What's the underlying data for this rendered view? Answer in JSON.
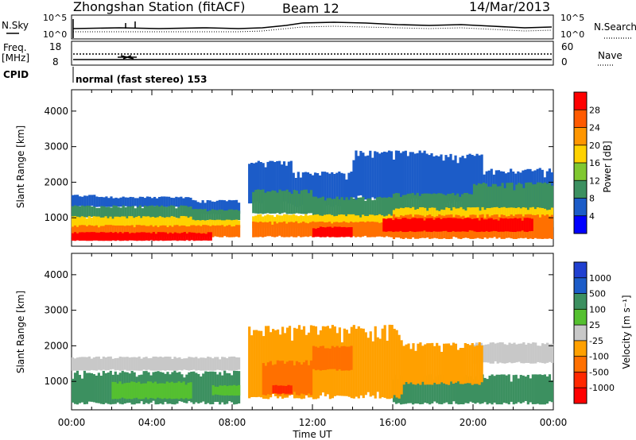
{
  "header": {
    "station": "Zhongshan Station (fitACF)",
    "beam": "Beam 12",
    "date": "14/Mar/2013"
  },
  "top_panel": {
    "left_label": "N.Sky",
    "left_ticks": [
      "10^5",
      "10^0"
    ],
    "right_label": "N.Search",
    "right_ticks": [
      "10^5",
      "10^0"
    ]
  },
  "freq_panel": {
    "left_label_1": "Freq.",
    "left_label_2": "[MHz]",
    "left_ticks": [
      "18",
      "8"
    ],
    "right_label": "Nave",
    "right_ticks": [
      "60",
      "0"
    ]
  },
  "cpid": {
    "label": "CPID",
    "value": "normal (fast stereo) 153"
  },
  "power_colorbar": {
    "title": "Power [dB]",
    "ticks": [
      "28",
      "24",
      "20",
      "16",
      "12",
      "8",
      "4"
    ],
    "colors": [
      "#ff0000",
      "#ff5a00",
      "#ff9600",
      "#ffd200",
      "#80c830",
      "#3c9060",
      "#1c5cc8",
      "#0000ff"
    ]
  },
  "velocity_colorbar": {
    "title": "Velocity [m s⁻¹]",
    "ticks": [
      "1000",
      "500",
      "100",
      "25",
      "-25",
      "-100",
      "-500",
      "-1000"
    ],
    "colors": [
      "#2040d0",
      "#1c5cc8",
      "#3c9060",
      "#55c030",
      "#c8c8c8",
      "#ffa000",
      "#ff7000",
      "#ff2800",
      "#ff0000"
    ]
  },
  "chart_data": [
    {
      "type": "heatmap",
      "name": "power",
      "ylabel": "Slant Range [km]",
      "yticks": [
        1000,
        2000,
        3000,
        4000
      ],
      "ylim": [
        200,
        4600
      ],
      "colorbar_title": "Power [dB]",
      "colorbar_ticks": [
        28,
        24,
        20,
        16,
        12,
        8,
        4
      ],
      "layers": [
        {
          "color": "#1c5cc8",
          "segments": [
            [
              0.0,
              1.2,
              1300,
              1650
            ],
            [
              1.2,
              6.0,
              1300,
              1600
            ],
            [
              6.0,
              8.4,
              1100,
              1500
            ],
            [
              8.8,
              11.0,
              1400,
              2600
            ],
            [
              11.0,
              14.0,
              1300,
              2300
            ],
            [
              14.0,
              18.0,
              1500,
              2900
            ],
            [
              18.0,
              20.5,
              1400,
              2800
            ],
            [
              20.5,
              24.0,
              1200,
              2400
            ]
          ]
        },
        {
          "color": "#3c9060",
          "segments": [
            [
              0.0,
              1.2,
              1000,
              1350
            ],
            [
              1.2,
              6.0,
              950,
              1350
            ],
            [
              6.0,
              8.4,
              900,
              1250
            ],
            [
              9.0,
              12.0,
              1100,
              1800
            ],
            [
              12.0,
              16.0,
              900,
              1600
            ],
            [
              16.0,
              20.0,
              1000,
              1700
            ],
            [
              20.0,
              24.0,
              900,
              2000
            ]
          ]
        },
        {
          "color": "#ffd200",
          "segments": [
            [
              0.0,
              6.0,
              700,
              1050
            ],
            [
              6.0,
              8.4,
              700,
              950
            ],
            [
              9.0,
              16.0,
              700,
              1100
            ],
            [
              16.0,
              24.0,
              700,
              1300
            ]
          ]
        },
        {
          "color": "#ff7000",
          "segments": [
            [
              0.0,
              8.4,
              450,
              800
            ],
            [
              9.0,
              16.0,
              450,
              900
            ],
            [
              16.0,
              24.0,
              400,
              1100
            ]
          ]
        },
        {
          "color": "#ff0000",
          "segments": [
            [
              0.0,
              7.0,
              350,
              600
            ],
            [
              12.0,
              14.0,
              450,
              750
            ],
            [
              15.5,
              23.0,
              600,
              1000
            ]
          ]
        }
      ]
    },
    {
      "type": "heatmap",
      "name": "velocity",
      "ylabel": "Slant Range [km]",
      "xlabel": "Time UT",
      "yticks": [
        1000,
        2000,
        3000,
        4000
      ],
      "ylim": [
        200,
        4600
      ],
      "xticks": [
        "00:00",
        "04:00",
        "08:00",
        "12:00",
        "16:00",
        "20:00",
        "00:00"
      ],
      "colorbar_title": "Velocity [m s⁻¹]",
      "colorbar_ticks": [
        1000,
        500,
        100,
        25,
        -25,
        -100,
        -500,
        -1000
      ],
      "layers": [
        {
          "color": "#c8c8c8",
          "segments": [
            [
              0.0,
              8.4,
              1300,
              1700
            ],
            [
              20.0,
              24.0,
              1500,
              2100
            ]
          ]
        },
        {
          "color": "#3c9060",
          "segments": [
            [
              0.0,
              8.4,
              350,
              1300
            ],
            [
              16.0,
              24.0,
              350,
              1200
            ]
          ]
        },
        {
          "color": "#55c030",
          "segments": [
            [
              2.0,
              6.0,
              500,
              1000
            ],
            [
              7.0,
              8.4,
              600,
              900
            ]
          ]
        },
        {
          "color": "#ffa000",
          "segments": [
            [
              8.8,
              16.5,
              500,
              2600
            ],
            [
              16.5,
              20.5,
              900,
              2100
            ]
          ]
        },
        {
          "color": "#ff7000",
          "segments": [
            [
              9.5,
              12.0,
              600,
              1600
            ],
            [
              12.0,
              14.0,
              1300,
              2000
            ]
          ]
        },
        {
          "color": "#ff2800",
          "segments": [
            [
              10.0,
              11.0,
              650,
              900
            ]
          ]
        }
      ]
    }
  ]
}
